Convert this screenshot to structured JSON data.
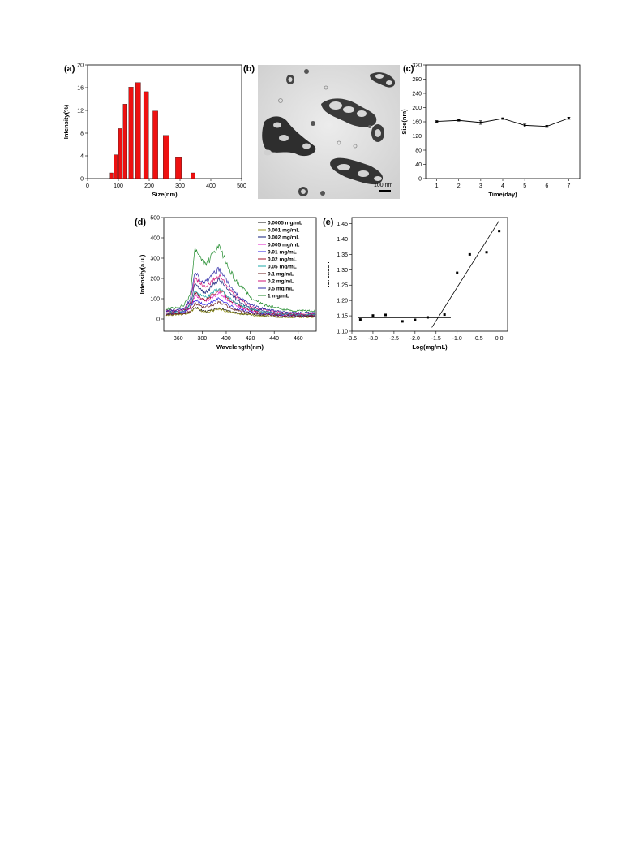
{
  "panels": {
    "a": {
      "label": "(a)"
    },
    "b": {
      "label": "(b)",
      "scale_bar": "100 nm"
    },
    "c": {
      "label": "(c)"
    },
    "d": {
      "label": "(d)"
    },
    "e": {
      "label": "(e)"
    }
  },
  "chart_data": [
    {
      "id": "a",
      "type": "bar",
      "xlabel": "Size(nm)",
      "ylabel": "Intensity(%)",
      "xlim": [
        0,
        500
      ],
      "ylim": [
        0,
        20
      ],
      "xticks": [
        0,
        100,
        200,
        300,
        400,
        500
      ],
      "yticks": [
        0,
        4,
        8,
        12,
        16,
        20
      ],
      "x": [
        78,
        91,
        106,
        122,
        141,
        164,
        190,
        220,
        255,
        295,
        342
      ],
      "values": [
        1.0,
        4.2,
        8.8,
        13.1,
        16.1,
        16.9,
        15.3,
        11.9,
        7.6,
        3.7,
        1.0
      ],
      "color": "#ee1111"
    },
    {
      "id": "c",
      "type": "line",
      "xlabel": "Time(day)",
      "ylabel": "Size(nm)",
      "xlim": [
        0.5,
        7.5
      ],
      "ylim": [
        0,
        320
      ],
      "xticks": [
        1,
        2,
        3,
        4,
        5,
        6,
        7
      ],
      "yticks": [
        0,
        40,
        80,
        120,
        160,
        200,
        240,
        280,
        320
      ],
      "x": [
        1,
        2,
        3,
        4,
        5,
        6,
        7
      ],
      "values": [
        161,
        164,
        158,
        169,
        150,
        147,
        170
      ],
      "errors": [
        2,
        2,
        5,
        2,
        5,
        3,
        3
      ]
    },
    {
      "id": "d",
      "type": "line",
      "xlabel": "Wavelength(nm)",
      "ylabel": "Intensity(a.u.)",
      "xlim": [
        348,
        475
      ],
      "ylim": [
        -60,
        500
      ],
      "xticks": [
        360,
        380,
        400,
        420,
        440,
        460
      ],
      "yticks": [
        0,
        100,
        200,
        300,
        400,
        500
      ],
      "x": [
        350,
        360,
        365,
        370,
        374,
        378,
        382,
        386,
        390,
        394,
        398,
        402,
        408,
        414,
        420,
        426,
        432,
        440,
        450,
        460,
        475
      ],
      "series": [
        {
          "name": "0.0005 mg/mL",
          "color": "#111111",
          "values": [
            20,
            22,
            25,
            35,
            60,
            45,
            38,
            40,
            45,
            55,
            45,
            38,
            30,
            25,
            22,
            18,
            15,
            13,
            10,
            10,
            12
          ]
        },
        {
          "name": "0.001 mg/mL",
          "color": "#9a9a1e",
          "values": [
            20,
            22,
            25,
            32,
            55,
            42,
            35,
            38,
            42,
            50,
            42,
            35,
            28,
            24,
            20,
            16,
            14,
            12,
            10,
            10,
            10
          ]
        },
        {
          "name": "0.002 mg/mL",
          "color": "#101e7a",
          "values": [
            35,
            38,
            45,
            70,
            180,
            150,
            130,
            145,
            175,
            195,
            170,
            135,
            100,
            75,
            58,
            45,
            38,
            30,
            25,
            22,
            22
          ]
        },
        {
          "name": "0.005 mg/mL",
          "color": "#e21ec8",
          "values": [
            28,
            30,
            36,
            55,
            120,
            100,
            88,
            95,
            110,
            130,
            112,
            90,
            68,
            52,
            42,
            34,
            28,
            24,
            20,
            18,
            18
          ]
        },
        {
          "name": "0.01 mg/mL",
          "color": "#2a1ee0",
          "values": [
            28,
            30,
            35,
            55,
            95,
            80,
            70,
            76,
            90,
            100,
            88,
            70,
            52,
            42,
            34,
            28,
            24,
            20,
            18,
            16,
            16
          ]
        },
        {
          "name": "0.02 mg/mL",
          "color": "#a0102a",
          "values": [
            30,
            32,
            40,
            60,
            130,
            110,
            95,
            105,
            125,
            145,
            125,
            100,
            75,
            58,
            46,
            38,
            32,
            26,
            22,
            20,
            20
          ]
        },
        {
          "name": "0.05 mg/mL",
          "color": "#1ea8a8",
          "values": [
            30,
            32,
            40,
            65,
            140,
            120,
            105,
            115,
            135,
            150,
            130,
            105,
            80,
            62,
            50,
            40,
            34,
            28,
            24,
            22,
            22
          ]
        },
        {
          "name": "0.1 mg/mL",
          "color": "#6a1e1e",
          "values": [
            22,
            24,
            28,
            40,
            80,
            65,
            58,
            62,
            72,
            85,
            72,
            58,
            44,
            36,
            30,
            25,
            22,
            18,
            15,
            14,
            14
          ]
        },
        {
          "name": "0.2 mg/mL",
          "color": "#d0167a",
          "values": [
            40,
            42,
            50,
            85,
            210,
            175,
            160,
            170,
            195,
            215,
            190,
            150,
            110,
            85,
            65,
            52,
            45,
            36,
            30,
            27,
            27
          ]
        },
        {
          "name": "0.5 mg/mL",
          "color": "#2e2aa8",
          "values": [
            42,
            45,
            55,
            95,
            240,
            195,
            180,
            195,
            225,
            245,
            215,
            170,
            125,
            95,
            72,
            58,
            50,
            40,
            32,
            30,
            30
          ]
        },
        {
          "name": "1 mg/mL",
          "color": "#1e8a2a",
          "values": [
            50,
            55,
            70,
            120,
            350,
            300,
            270,
            290,
            330,
            350,
            310,
            250,
            190,
            150,
            110,
            85,
            70,
            58,
            45,
            40,
            40
          ]
        }
      ]
    },
    {
      "id": "e",
      "type": "scatter",
      "xlabel": "Log(mg/mL)",
      "ylabel": "I373/I384",
      "xlim": [
        -3.5,
        0.2
      ],
      "ylim": [
        1.1,
        1.47
      ],
      "xticks": [
        -3.5,
        -3.0,
        -2.5,
        -2.0,
        -1.5,
        -1.0,
        -0.5,
        0.0
      ],
      "xtick_labels": [
        "-3.5",
        "-3.0",
        "-2.5",
        "-2.0",
        "-1.5",
        "-1.0",
        "-0.5",
        "0.0"
      ],
      "yticks": [
        1.1,
        1.15,
        1.2,
        1.25,
        1.3,
        1.35,
        1.4,
        1.45
      ],
      "ytick_labels": [
        "1.10",
        "1.15",
        "1.20",
        "1.25",
        "1.30",
        "1.35",
        "1.40",
        "1.45"
      ],
      "x": [
        -3.3,
        -3.0,
        -2.7,
        -2.3,
        -2.0,
        -1.7,
        -1.3,
        -1.0,
        -0.7,
        -0.3,
        0.0
      ],
      "values": [
        1.138,
        1.151,
        1.153,
        1.132,
        1.137,
        1.145,
        1.154,
        1.29,
        1.35,
        1.357,
        1.426
      ],
      "fit_lines": [
        {
          "x": [
            -3.35,
            -1.15
          ],
          "y": [
            1.144,
            1.144
          ]
        },
        {
          "x": [
            -1.6,
            0.0
          ],
          "y": [
            1.112,
            1.46
          ]
        }
      ]
    }
  ]
}
